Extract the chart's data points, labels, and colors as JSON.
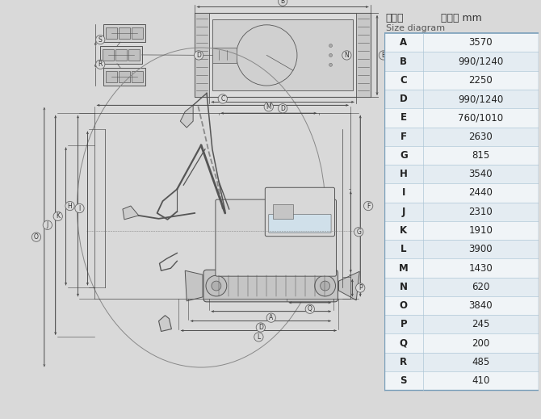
{
  "title_cn": "尺寸图",
  "title_unit": "单位： mm",
  "title_en": "Size diagram",
  "bg_color": "#d9d9d9",
  "table_data": [
    [
      "A",
      "3570"
    ],
    [
      "B",
      "990/1240"
    ],
    [
      "C",
      "2250"
    ],
    [
      "D",
      "990/1240"
    ],
    [
      "E",
      "760/1010"
    ],
    [
      "F",
      "2630"
    ],
    [
      "G",
      "815"
    ],
    [
      "H",
      "3540"
    ],
    [
      "I",
      "2440"
    ],
    [
      "J",
      "2310"
    ],
    [
      "K",
      "1910"
    ],
    [
      "L",
      "3900"
    ],
    [
      "M",
      "1430"
    ],
    [
      "N",
      "620"
    ],
    [
      "O",
      "3840"
    ],
    [
      "P",
      "245"
    ],
    [
      "Q",
      "200"
    ],
    [
      "R",
      "485"
    ],
    [
      "S",
      "410"
    ]
  ],
  "lc": "#555555",
  "dc": "#444444",
  "tc": "#999999",
  "wc": "#ffffff"
}
